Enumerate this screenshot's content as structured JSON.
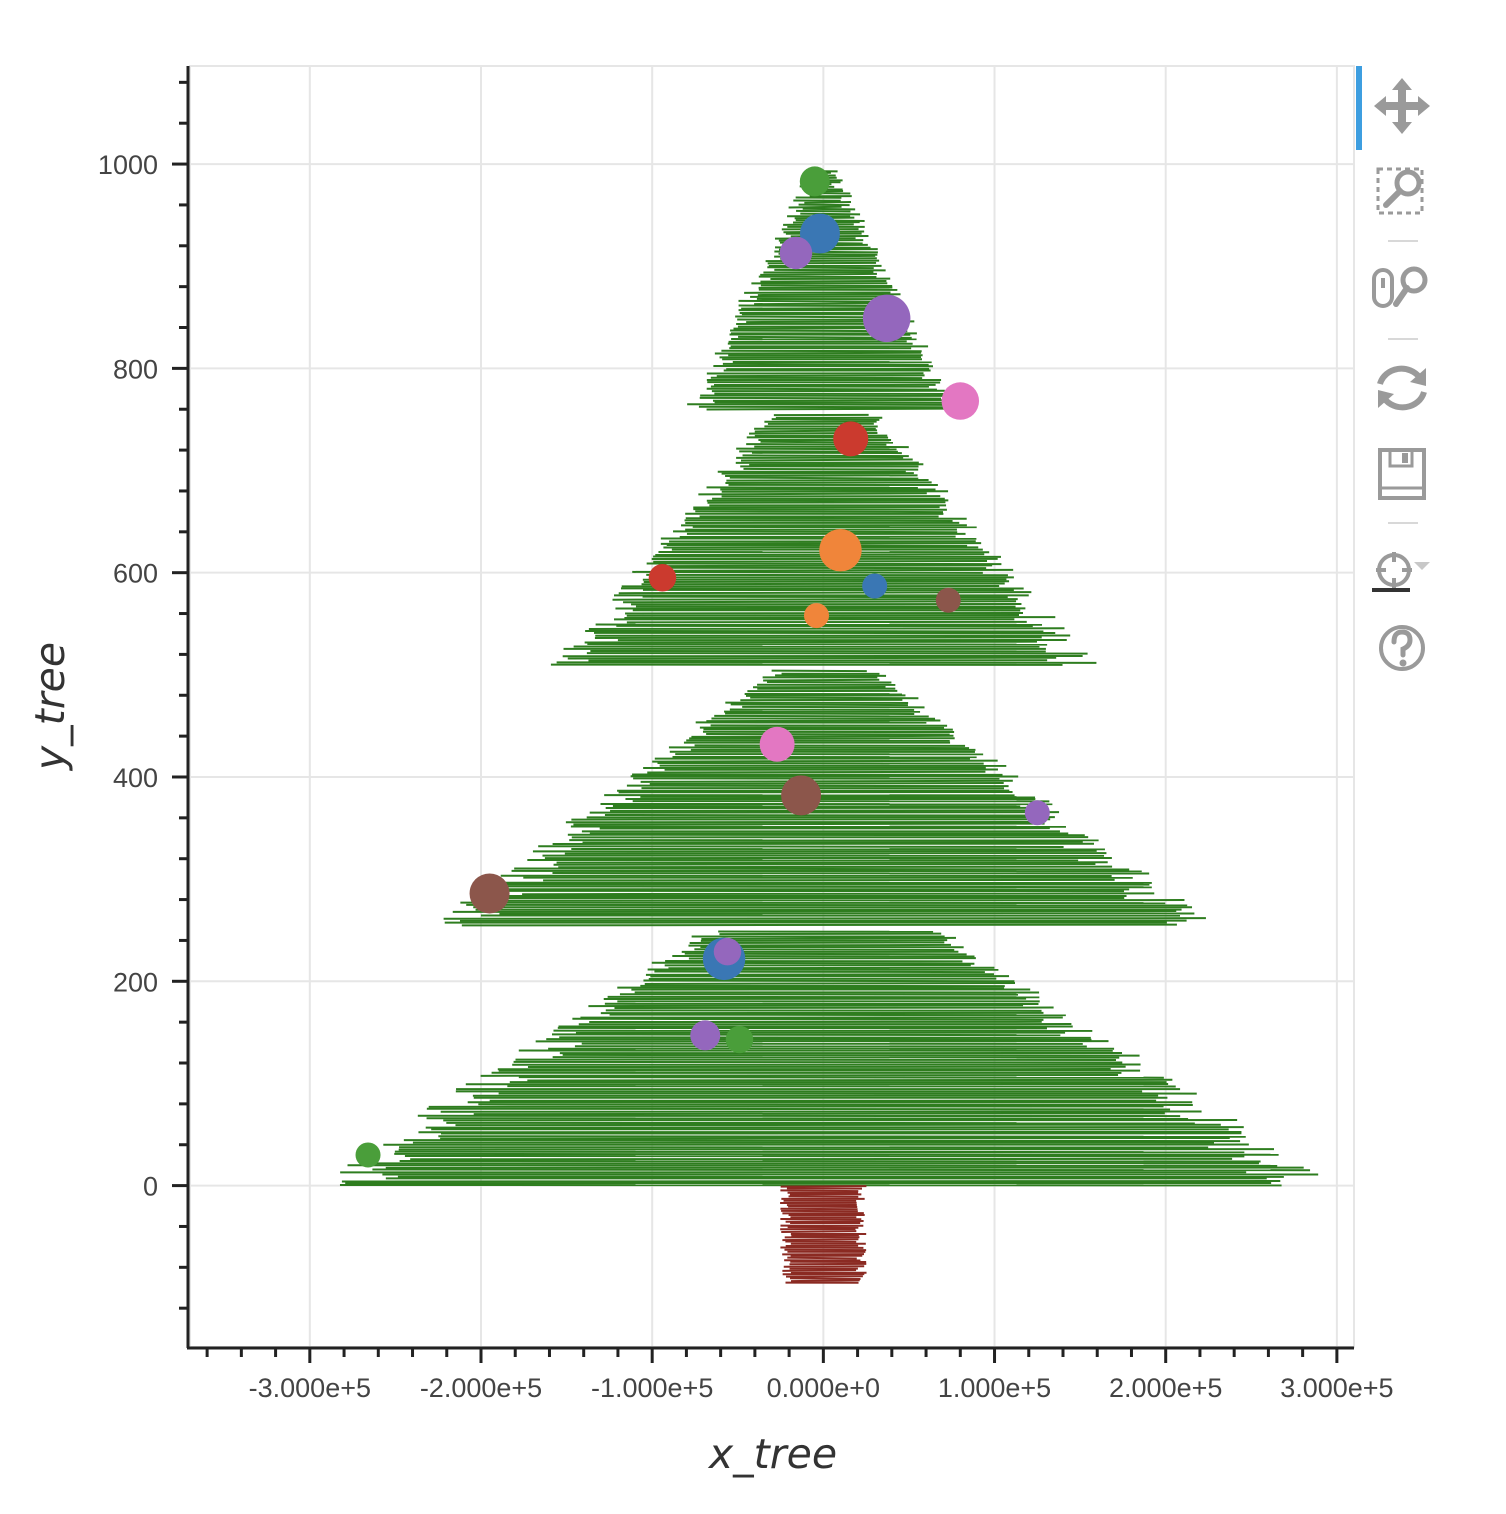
{
  "chart_data": {
    "type": "scatter",
    "title": "",
    "xlabel": "x_tree",
    "ylabel": "y_tree",
    "xlim": [
      -370000,
      310000
    ],
    "ylim": [
      -158,
      1096
    ],
    "x_ticks": [
      {
        "value": -300000,
        "label": "-3.000e+5"
      },
      {
        "value": -200000,
        "label": "-2.000e+5"
      },
      {
        "value": -100000,
        "label": "-1.000e+5"
      },
      {
        "value": 0,
        "label": "0.000e+0"
      },
      {
        "value": 100000,
        "label": "1.000e+5"
      },
      {
        "value": 200000,
        "label": "2.000e+5"
      },
      {
        "value": 300000,
        "label": "3.000e+5"
      }
    ],
    "y_ticks": [
      {
        "value": 0,
        "label": "0"
      },
      {
        "value": 200,
        "label": "200"
      },
      {
        "value": 400,
        "label": "400"
      },
      {
        "value": 600,
        "label": "600"
      },
      {
        "value": 800,
        "label": "800"
      },
      {
        "value": 1000,
        "label": "1000"
      }
    ],
    "grid": true,
    "tree_color": "#2e7d1f",
    "trunk_color": "#8b2a22",
    "tiers": [
      {
        "y_bottom": 0,
        "y_top": 250,
        "half_width_bottom": 300000,
        "half_width_top": 70000
      },
      {
        "y_bottom": 255,
        "y_top": 505,
        "half_width_bottom": 230000,
        "half_width_top": 30000
      },
      {
        "y_bottom": 510,
        "y_top": 755,
        "half_width_bottom": 160000,
        "half_width_top": 30000
      },
      {
        "y_bottom": 760,
        "y_top": 995,
        "half_width_bottom": 80000,
        "half_width_top": 5000
      }
    ],
    "trunk": {
      "y_bottom": -95,
      "y_top": 0,
      "half_width": 22000
    },
    "ornaments": [
      {
        "x": -5000,
        "y": 983,
        "size": 12,
        "color": "#4a9e3a"
      },
      {
        "x": -2000,
        "y": 932,
        "size": 16,
        "color": "#3a77b4"
      },
      {
        "x": -16000,
        "y": 913,
        "size": 13,
        "color": "#9467bd"
      },
      {
        "x": 37000,
        "y": 849,
        "size": 19,
        "color": "#9467bd"
      },
      {
        "x": 80000,
        "y": 768,
        "size": 15,
        "color": "#e377c2"
      },
      {
        "x": 16000,
        "y": 731,
        "size": 14,
        "color": "#cb3a2e"
      },
      {
        "x": 10000,
        "y": 622,
        "size": 17,
        "color": "#f0853a"
      },
      {
        "x": -94000,
        "y": 595,
        "size": 11,
        "color": "#cb3a2e"
      },
      {
        "x": 30000,
        "y": 587,
        "size": 10,
        "color": "#3a77b4"
      },
      {
        "x": 73000,
        "y": 573,
        "size": 10,
        "color": "#8c564b"
      },
      {
        "x": -4000,
        "y": 558,
        "size": 10,
        "color": "#f0853a"
      },
      {
        "x": -27000,
        "y": 432,
        "size": 14,
        "color": "#e377c2"
      },
      {
        "x": -13000,
        "y": 382,
        "size": 16,
        "color": "#8c564b"
      },
      {
        "x": 125000,
        "y": 365,
        "size": 10,
        "color": "#9467bd"
      },
      {
        "x": -195000,
        "y": 286,
        "size": 16,
        "color": "#8c564b"
      },
      {
        "x": -58000,
        "y": 222,
        "size": 17,
        "color": "#3a77b4"
      },
      {
        "x": -56000,
        "y": 229,
        "size": 11,
        "color": "#9467bd"
      },
      {
        "x": -69000,
        "y": 147,
        "size": 12,
        "color": "#9467bd"
      },
      {
        "x": -49000,
        "y": 143,
        "size": 11,
        "color": "#4a9e3a"
      },
      {
        "x": -266000,
        "y": 30,
        "size": 10,
        "color": "#4a9e3a"
      }
    ]
  },
  "toolbar": {
    "tools": [
      "pan-icon",
      "box-zoom-icon",
      "wheel-zoom-icon",
      "reset-icon",
      "save-icon",
      "hover-icon",
      "help-icon"
    ],
    "active_color": "#3d9ee0",
    "icon_color": "#9a9a9a"
  }
}
